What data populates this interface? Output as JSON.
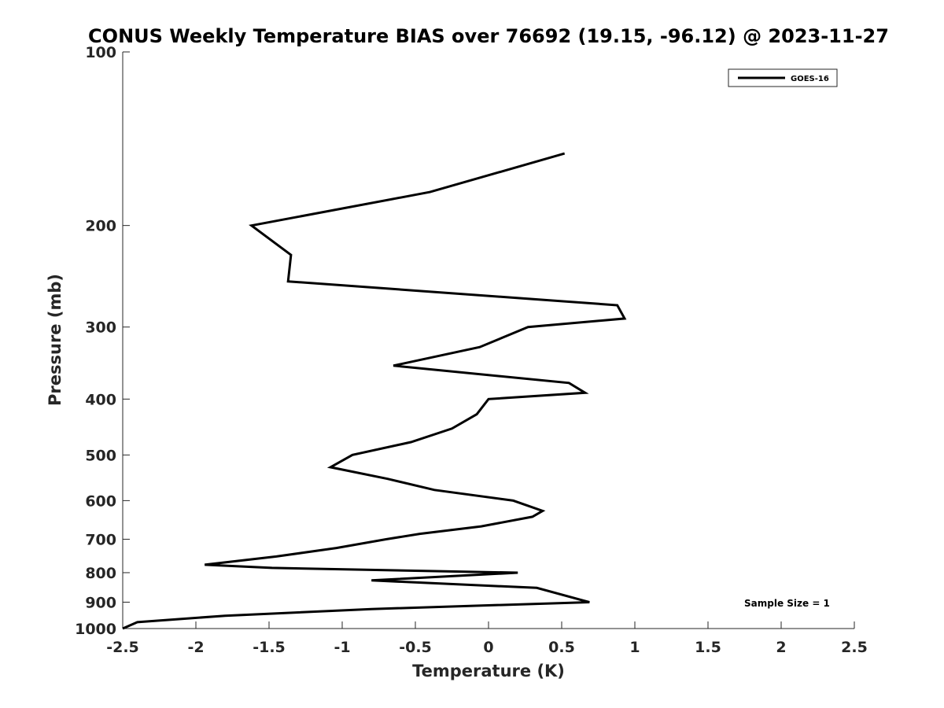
{
  "chart_data": {
    "type": "line",
    "title": "CONUS Weekly Temperature BIAS over 76692 (19.15, -96.12) @ 2023-11-27",
    "xlabel": "Temperature (K)",
    "ylabel": "Pressure (mb)",
    "xlim": [
      -2.5,
      2.5
    ],
    "ylim": [
      100,
      1000
    ],
    "y_scale": "log",
    "y_reversed": true,
    "x_ticks": [
      -2.5,
      -2,
      -1.5,
      -1,
      -0.5,
      0,
      0.5,
      1,
      1.5,
      2,
      2.5
    ],
    "x_tick_labels": [
      "-2.5",
      "-2",
      "-1.5",
      "-1",
      "-0.5",
      "0",
      "0.5",
      "1",
      "1.5",
      "2",
      "2.5"
    ],
    "y_ticks": [
      100,
      200,
      300,
      400,
      500,
      600,
      700,
      800,
      900,
      1000
    ],
    "y_tick_labels": [
      "100",
      "200",
      "300",
      "400",
      "500",
      "600",
      "700",
      "800",
      "900",
      "1000"
    ],
    "grid": false,
    "legend_position": "top-right",
    "annotation": "Sample Size = 1",
    "series": [
      {
        "name": "GOES-16",
        "color": "#000000",
        "points": [
          {
            "x": 0.52,
            "p": 150
          },
          {
            "x": -0.4,
            "p": 175
          },
          {
            "x": -1.62,
            "p": 200
          },
          {
            "x": -1.35,
            "p": 225
          },
          {
            "x": -1.37,
            "p": 250
          },
          {
            "x": 0.88,
            "p": 275
          },
          {
            "x": 0.93,
            "p": 290
          },
          {
            "x": 0.27,
            "p": 300
          },
          {
            "x": -0.06,
            "p": 325
          },
          {
            "x": -0.65,
            "p": 350
          },
          {
            "x": 0.55,
            "p": 375
          },
          {
            "x": 0.66,
            "p": 390
          },
          {
            "x": 0.0,
            "p": 400
          },
          {
            "x": -0.08,
            "p": 425
          },
          {
            "x": -0.25,
            "p": 450
          },
          {
            "x": -0.53,
            "p": 475
          },
          {
            "x": -0.93,
            "p": 500
          },
          {
            "x": -1.08,
            "p": 525
          },
          {
            "x": -0.69,
            "p": 550
          },
          {
            "x": -0.37,
            "p": 575
          },
          {
            "x": 0.17,
            "p": 600
          },
          {
            "x": 0.37,
            "p": 625
          },
          {
            "x": 0.3,
            "p": 640
          },
          {
            "x": -0.05,
            "p": 665
          },
          {
            "x": -0.47,
            "p": 685
          },
          {
            "x": -0.7,
            "p": 700
          },
          {
            "x": -1.04,
            "p": 725
          },
          {
            "x": -1.45,
            "p": 750
          },
          {
            "x": -1.94,
            "p": 775
          },
          {
            "x": -1.48,
            "p": 785
          },
          {
            "x": 0.2,
            "p": 800
          },
          {
            "x": -0.8,
            "p": 825
          },
          {
            "x": 0.33,
            "p": 850
          },
          {
            "x": 0.69,
            "p": 900
          },
          {
            "x": -0.8,
            "p": 925
          },
          {
            "x": -1.8,
            "p": 950
          },
          {
            "x": -2.4,
            "p": 975
          },
          {
            "x": -2.5,
            "p": 1000
          }
        ]
      }
    ]
  }
}
